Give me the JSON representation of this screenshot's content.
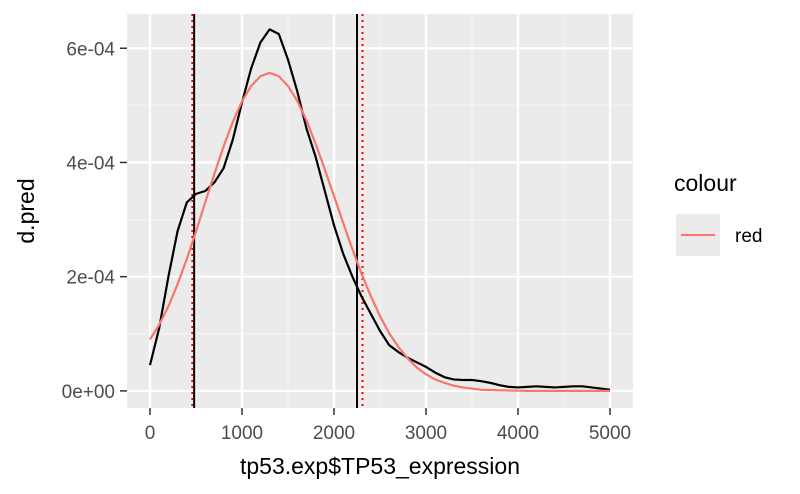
{
  "chart_data": {
    "type": "line",
    "title": "",
    "xlabel": "tp53.exp$TP53_expression",
    "ylabel": "d.pred",
    "xlim": [
      -250,
      5250
    ],
    "ylim": [
      -3e-05,
      0.00066
    ],
    "x_ticks": [
      0,
      1000,
      2000,
      3000,
      4000,
      5000
    ],
    "x_tick_labels": [
      "0",
      "1000",
      "2000",
      "3000",
      "4000",
      "5000"
    ],
    "y_ticks": [
      0,
      0.0002,
      0.0004,
      0.0006
    ],
    "y_tick_labels": [
      "0e+00",
      "2e-04",
      "4e-04",
      "6e-04"
    ],
    "grid": true,
    "legend": {
      "title": "colour",
      "position": "right",
      "entries": [
        {
          "label": "red",
          "color": "#F8766D"
        }
      ]
    },
    "series": [
      {
        "color": "#000000",
        "x": [
          0,
          100,
          200,
          300,
          400,
          500,
          600,
          700,
          800,
          900,
          1000,
          1100,
          1200,
          1300,
          1400,
          1500,
          1600,
          1700,
          1800,
          1900,
          2000,
          2100,
          2200,
          2300,
          2400,
          2500,
          2600,
          2700,
          2800,
          2900,
          3000,
          3100,
          3200,
          3300,
          3400,
          3500,
          3600,
          3700,
          3800,
          3900,
          4000,
          4100,
          4200,
          4300,
          4400,
          4500,
          4600,
          4700,
          4800,
          4900,
          5000
        ],
        "values": [
          4.5e-05,
          0.00011,
          0.0002,
          0.00028,
          0.00033,
          0.000345,
          0.00035,
          0.000365,
          0.00039,
          0.00044,
          0.000505,
          0.000565,
          0.00061,
          0.000633,
          0.000625,
          0.00058,
          0.000525,
          0.00046,
          0.00041,
          0.00035,
          0.00029,
          0.00024,
          0.0002,
          0.000165,
          0.000135,
          0.000105,
          8e-05,
          6.8e-05,
          5.8e-05,
          5e-05,
          4.2e-05,
          3.2e-05,
          2.4e-05,
          2e-05,
          1.9e-05,
          1.9e-05,
          1.7e-05,
          1.4e-05,
          1e-05,
          7e-06,
          6e-06,
          7e-06,
          8e-06,
          7e-06,
          6e-06,
          7e-06,
          8e-06,
          8e-06,
          6e-06,
          4e-06,
          2e-06
        ]
      },
      {
        "name": "red",
        "color": "#F8766D",
        "x": [
          0,
          100,
          200,
          300,
          400,
          500,
          600,
          700,
          800,
          900,
          1000,
          1100,
          1200,
          1300,
          1400,
          1500,
          1600,
          1700,
          1800,
          1900,
          2000,
          2100,
          2200,
          2300,
          2400,
          2500,
          2600,
          2700,
          2800,
          2900,
          3000,
          3100,
          3200,
          3300,
          3400,
          3500,
          3600,
          3700,
          3800,
          3900,
          4000,
          4100,
          4200,
          4300,
          4400,
          4500,
          4600,
          4700,
          4800,
          4900,
          5000
        ],
        "values": [
          9e-05,
          0.000116,
          0.000148,
          0.000187,
          0.000231,
          0.000279,
          0.00033,
          0.00038,
          0.000428,
          0.000471,
          0.000507,
          0.000534,
          0.000551,
          0.000557,
          0.000551,
          0.000534,
          0.000508,
          0.000474,
          0.000433,
          0.000388,
          0.000341,
          0.000294,
          0.000248,
          0.000205,
          0.000166,
          0.000131,
          0.000101,
          7.7e-05,
          5.7e-05,
          4.1e-05,
          2.9e-05,
          2e-05,
          1.4e-05,
          9e-06,
          6e-06,
          4e-06,
          2e-06,
          1.5e-06,
          1e-06,
          5e-07,
          3e-07,
          0,
          0,
          0,
          0,
          0,
          0,
          0,
          0,
          0,
          0
        ]
      }
    ],
    "vlines": [
      {
        "x": 480,
        "color": "#000000",
        "style": "solid"
      },
      {
        "x": 2250,
        "color": "#000000",
        "style": "solid"
      },
      {
        "x": 460,
        "color": "#FF0000",
        "style": "dotted"
      },
      {
        "x": 2310,
        "color": "#FF0000",
        "style": "dotted"
      }
    ]
  }
}
